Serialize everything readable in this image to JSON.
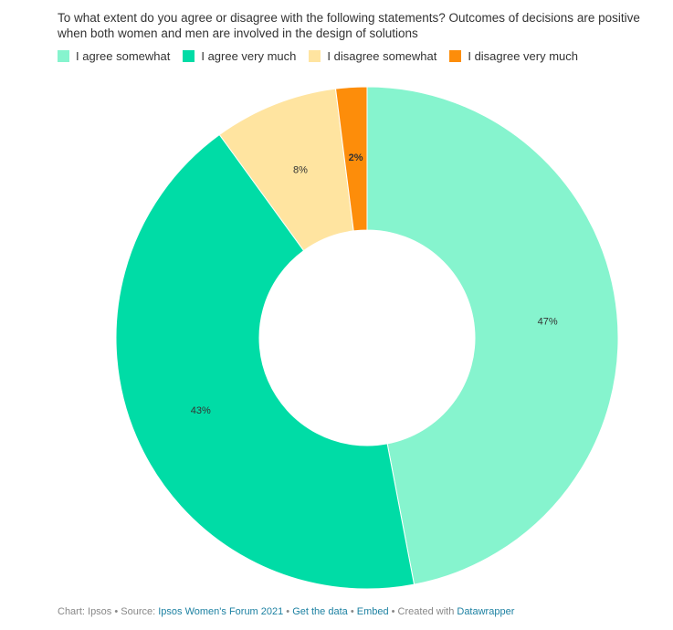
{
  "chart_data": {
    "type": "pie",
    "title": "To what extent do you agree or disagree with the following statements? Outcomes of decisions are positive when both women and men are involved in the design of solutions",
    "categories": [
      "I agree somewhat",
      "I agree very much",
      "I disagree somewhat",
      "I disagree very much"
    ],
    "values": [
      47,
      43,
      8,
      2
    ],
    "labels": [
      "47%",
      "43%",
      "8%",
      "2%"
    ],
    "colors": [
      "#86f4ce",
      "#00dca6",
      "#ffe4a0",
      "#fd8d0a"
    ],
    "label_colors": [
      "#333333",
      "#333333",
      "#333333",
      "#ffffff"
    ],
    "donut": true,
    "legend_position": "top-left"
  },
  "footer": {
    "chart_prefix": "Chart: Ipsos • Source: ",
    "source_link": "Ipsos Women's Forum 2021",
    "sep1": " • ",
    "get_data": "Get the data",
    "sep2": " • ",
    "embed": "Embed",
    "created": " • Created with ",
    "datawrapper": "Datawrapper"
  }
}
